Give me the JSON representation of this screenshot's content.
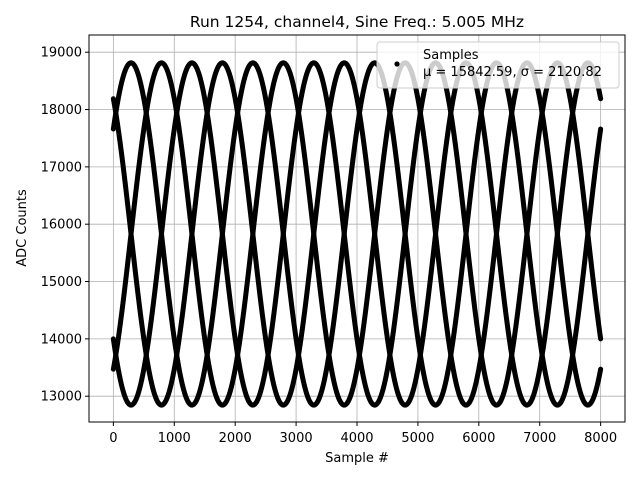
{
  "chart_data": {
    "type": "scatter",
    "title": "Run 1254, channel4, Sine Freq.: 5.005 MHz",
    "xlabel": "Sample #",
    "ylabel": "ADC Counts",
    "xlim": [
      -400,
      8400
    ],
    "ylim": [
      12550,
      19300
    ],
    "xticks": [
      0,
      1000,
      2000,
      3000,
      4000,
      5000,
      6000,
      7000,
      8000
    ],
    "xtick_labels": [
      "0",
      "1000",
      "2000",
      "3000",
      "4000",
      "5000",
      "6000",
      "7000",
      "8000"
    ],
    "yticks": [
      13000,
      14000,
      15000,
      16000,
      17000,
      18000,
      19000
    ],
    "ytick_labels": [
      "13000",
      "14000",
      "15000",
      "16000",
      "17000",
      "18000",
      "19000"
    ],
    "grid": true,
    "legend": {
      "position": "top-right",
      "entries": [
        {
          "label": "Samples",
          "stat_line": "μ = 15842.59, σ = 2120.82"
        }
      ]
    },
    "series": [
      {
        "name": "Samples",
        "color": "#000000",
        "model": {
          "mean": 15830,
          "amplitude": 2985,
          "x_start": 0,
          "x_end": 8000,
          "period_samples": 2000,
          "phases_deg": [
            127.8,
            37.8,
            307.8,
            217.8
          ]
        }
      }
    ]
  }
}
